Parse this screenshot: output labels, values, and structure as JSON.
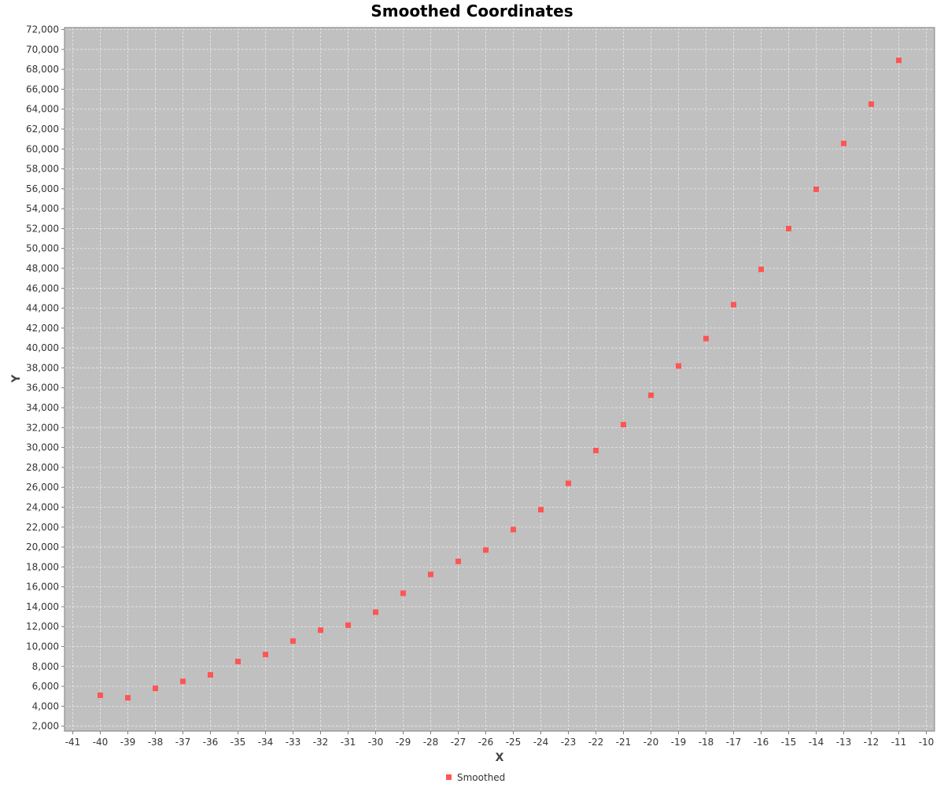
{
  "chart_data": {
    "type": "scatter",
    "title": "Smoothed Coordinates",
    "xlabel": "X",
    "ylabel": "Y",
    "xlim": [
      -41.3,
      -9.7
    ],
    "ylim": [
      1500,
      72200
    ],
    "xticks": [
      -41,
      -40,
      -39,
      -38,
      -37,
      -36,
      -35,
      -34,
      -33,
      -32,
      -31,
      -30,
      -29,
      -28,
      -27,
      -26,
      -25,
      -24,
      -23,
      -22,
      -21,
      -20,
      -19,
      -18,
      -17,
      -16,
      -15,
      -14,
      -13,
      -12,
      -11,
      -10
    ],
    "yticks": [
      2000,
      4000,
      6000,
      8000,
      10000,
      12000,
      14000,
      16000,
      18000,
      20000,
      22000,
      24000,
      26000,
      28000,
      30000,
      32000,
      34000,
      36000,
      38000,
      40000,
      42000,
      44000,
      46000,
      48000,
      50000,
      52000,
      54000,
      56000,
      58000,
      60000,
      62000,
      64000,
      66000,
      68000,
      70000,
      72000
    ],
    "grid": true,
    "legend": "bottom-center",
    "series": [
      {
        "name": "Smoothed",
        "color": "#ff5555",
        "x": [
          -40,
          -39,
          -38,
          -37,
          -36,
          -35,
          -34,
          -33,
          -32,
          -31,
          -30,
          -29,
          -28,
          -27,
          -26,
          -25,
          -24,
          -23,
          -22,
          -21,
          -20,
          -19,
          -18,
          -17,
          -16,
          -15,
          -14,
          -13,
          -12,
          -11
        ],
        "y": [
          5100,
          4850,
          5800,
          6500,
          7150,
          8500,
          9200,
          10550,
          11650,
          12150,
          13450,
          15350,
          17250,
          18550,
          19700,
          21750,
          23750,
          26400,
          29700,
          32300,
          35250,
          38200,
          40950,
          44350,
          47900,
          52000,
          55950,
          60550,
          64500,
          68900
        ]
      }
    ]
  },
  "colors": {
    "plot_background": "#c0c0c0",
    "gridline": "#e8e8e8",
    "outline": "#808080"
  }
}
